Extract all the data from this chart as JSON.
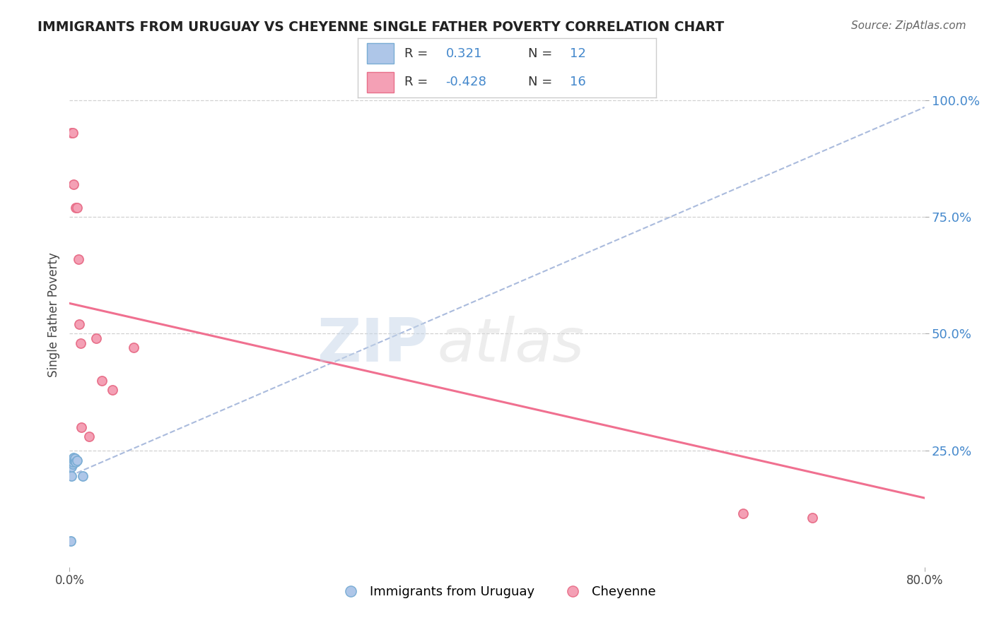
{
  "title": "IMMIGRANTS FROM URUGUAY VS CHEYENNE SINGLE FATHER POVERTY CORRELATION CHART",
  "source": "Source: ZipAtlas.com",
  "ylabel": "Single Father Poverty",
  "legend_label_blue": "Immigrants from Uruguay",
  "legend_label_pink": "Cheyenne",
  "r_blue": 0.321,
  "n_blue": 12,
  "r_pink": -0.428,
  "n_pink": 16,
  "xlim": [
    0.0,
    0.8
  ],
  "ylim": [
    0.0,
    1.08
  ],
  "yticks": [
    0.25,
    0.5,
    0.75,
    1.0
  ],
  "ytick_labels": [
    "25.0%",
    "50.0%",
    "75.0%",
    "100.0%"
  ],
  "blue_scatter_x": [
    0.001,
    0.002,
    0.002,
    0.003,
    0.003,
    0.004,
    0.004,
    0.005,
    0.005,
    0.006,
    0.007,
    0.012
  ],
  "blue_scatter_y": [
    0.055,
    0.195,
    0.215,
    0.22,
    0.225,
    0.23,
    0.235,
    0.228,
    0.233,
    0.225,
    0.228,
    0.195
  ],
  "pink_scatter_x": [
    0.002,
    0.003,
    0.004,
    0.006,
    0.007,
    0.008,
    0.009,
    0.01,
    0.011,
    0.018,
    0.025,
    0.03,
    0.04,
    0.06,
    0.63,
    0.695
  ],
  "pink_scatter_y": [
    0.93,
    0.93,
    0.82,
    0.77,
    0.77,
    0.66,
    0.52,
    0.48,
    0.3,
    0.28,
    0.49,
    0.4,
    0.38,
    0.47,
    0.115,
    0.105
  ],
  "blue_line_x0": 0.0,
  "blue_line_x1": 0.8,
  "blue_line_y0": 0.195,
  "blue_line_y1": 0.985,
  "pink_line_x0": 0.0,
  "pink_line_x1": 0.8,
  "pink_line_y0": 0.565,
  "pink_line_y1": 0.148,
  "color_blue_fill": "#aec6e8",
  "color_blue_edge": "#7aadd4",
  "color_pink_fill": "#f4a0b5",
  "color_pink_edge": "#e8708a",
  "color_line_blue": "#aabbdd",
  "color_line_pink": "#f07090",
  "watermark_zip": "ZIP",
  "watermark_atlas": "atlas",
  "background_color": "#ffffff",
  "grid_color": "#cccccc",
  "title_color": "#222222",
  "source_color": "#666666",
  "axis_label_color": "#444444",
  "tick_color_right": "#4488cc",
  "legend_box_color": "#dddddd"
}
